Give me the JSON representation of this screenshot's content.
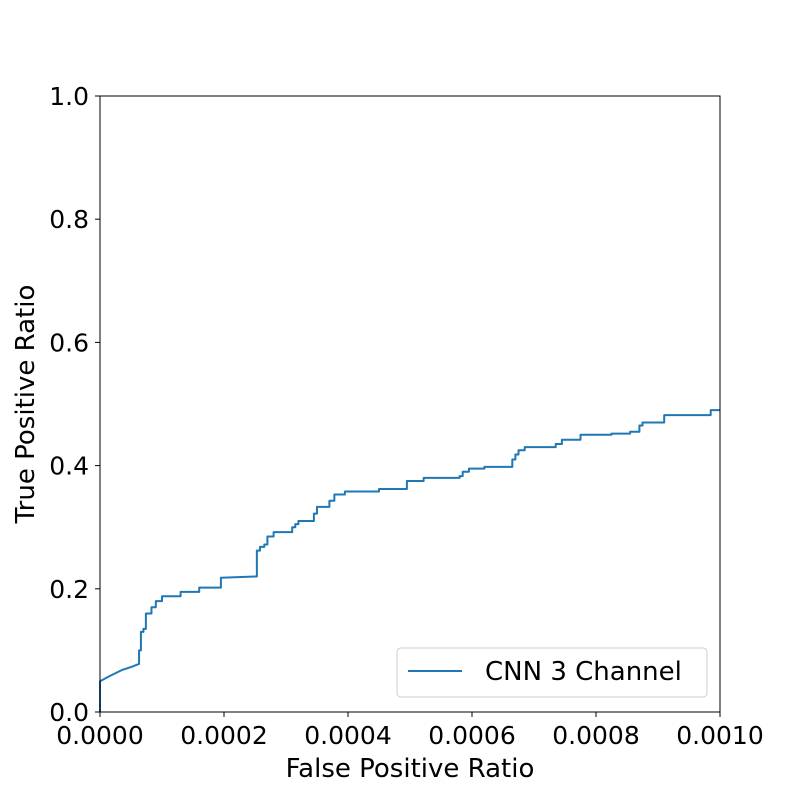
{
  "chart_data": {
    "type": "line",
    "title": "",
    "xlabel": "False Positive Ratio",
    "ylabel": "True Positive Ratio",
    "xlim": [
      0.0,
      0.001
    ],
    "ylim": [
      0.0,
      1.0
    ],
    "x_ticks": [
      "0.0000",
      "0.0002",
      "0.0004",
      "0.0006",
      "0.0008",
      "0.0010"
    ],
    "y_ticks": [
      "0.0",
      "0.2",
      "0.4",
      "0.6",
      "0.8",
      "1.0"
    ],
    "grid": false,
    "legend_position": "lower-right",
    "series": [
      {
        "name": "CNN 3 Channel",
        "color": "#1f77b4",
        "x": [
          0.0,
          0.0,
          1.5e-05,
          3.5e-05,
          5e-05,
          6.3e-05,
          6.3e-05,
          6.6e-05,
          6.6e-05,
          7e-05,
          7e-05,
          7.4e-05,
          7.4e-05,
          8.3e-05,
          8.3e-05,
          9e-05,
          9e-05,
          0.0001,
          0.0001,
          0.000104,
          0.000104,
          0.00013,
          0.00013,
          0.00016,
          0.00016,
          0.000195,
          0.000195,
          0.000252,
          0.000253,
          0.000253,
          0.000258,
          0.000258,
          0.000265,
          0.000265,
          0.00027,
          0.00027,
          0.00028,
          0.00028,
          0.00031,
          0.00031,
          0.000315,
          0.000315,
          0.00032,
          0.00032,
          0.000345,
          0.000345,
          0.00035,
          0.00035,
          0.00037,
          0.00037,
          0.000378,
          0.000378,
          0.000395,
          0.000395,
          0.00045,
          0.00045,
          0.000495,
          0.000495,
          0.000522,
          0.000522,
          0.00058,
          0.00058,
          0.000585,
          0.000585,
          0.000595,
          0.000595,
          0.00062,
          0.00062,
          0.000665,
          0.000665,
          0.00067,
          0.00067,
          0.000675,
          0.000675,
          0.000685,
          0.000685,
          0.000735,
          0.000735,
          0.000745,
          0.000745,
          0.000775,
          0.000775,
          0.000825,
          0.000825,
          0.000855,
          0.000855,
          0.00087,
          0.00087,
          0.000875,
          0.000875,
          0.00091,
          0.00091,
          0.000985,
          0.000985,
          0.001
        ],
        "y": [
          0.0,
          0.05,
          0.058,
          0.068,
          0.073,
          0.078,
          0.1,
          0.1,
          0.13,
          0.13,
          0.135,
          0.135,
          0.16,
          0.16,
          0.17,
          0.17,
          0.18,
          0.18,
          0.188,
          0.188,
          0.188,
          0.188,
          0.195,
          0.195,
          0.202,
          0.202,
          0.218,
          0.22,
          0.22,
          0.262,
          0.262,
          0.268,
          0.268,
          0.272,
          0.272,
          0.285,
          0.285,
          0.292,
          0.292,
          0.3,
          0.3,
          0.305,
          0.305,
          0.31,
          0.31,
          0.322,
          0.322,
          0.333,
          0.333,
          0.343,
          0.343,
          0.353,
          0.353,
          0.358,
          0.358,
          0.362,
          0.362,
          0.375,
          0.375,
          0.38,
          0.38,
          0.383,
          0.383,
          0.39,
          0.39,
          0.395,
          0.395,
          0.398,
          0.398,
          0.41,
          0.41,
          0.418,
          0.418,
          0.425,
          0.425,
          0.43,
          0.43,
          0.435,
          0.435,
          0.442,
          0.442,
          0.45,
          0.45,
          0.452,
          0.452,
          0.455,
          0.455,
          0.465,
          0.465,
          0.47,
          0.47,
          0.482,
          0.482,
          0.49,
          0.49
        ]
      }
    ]
  }
}
